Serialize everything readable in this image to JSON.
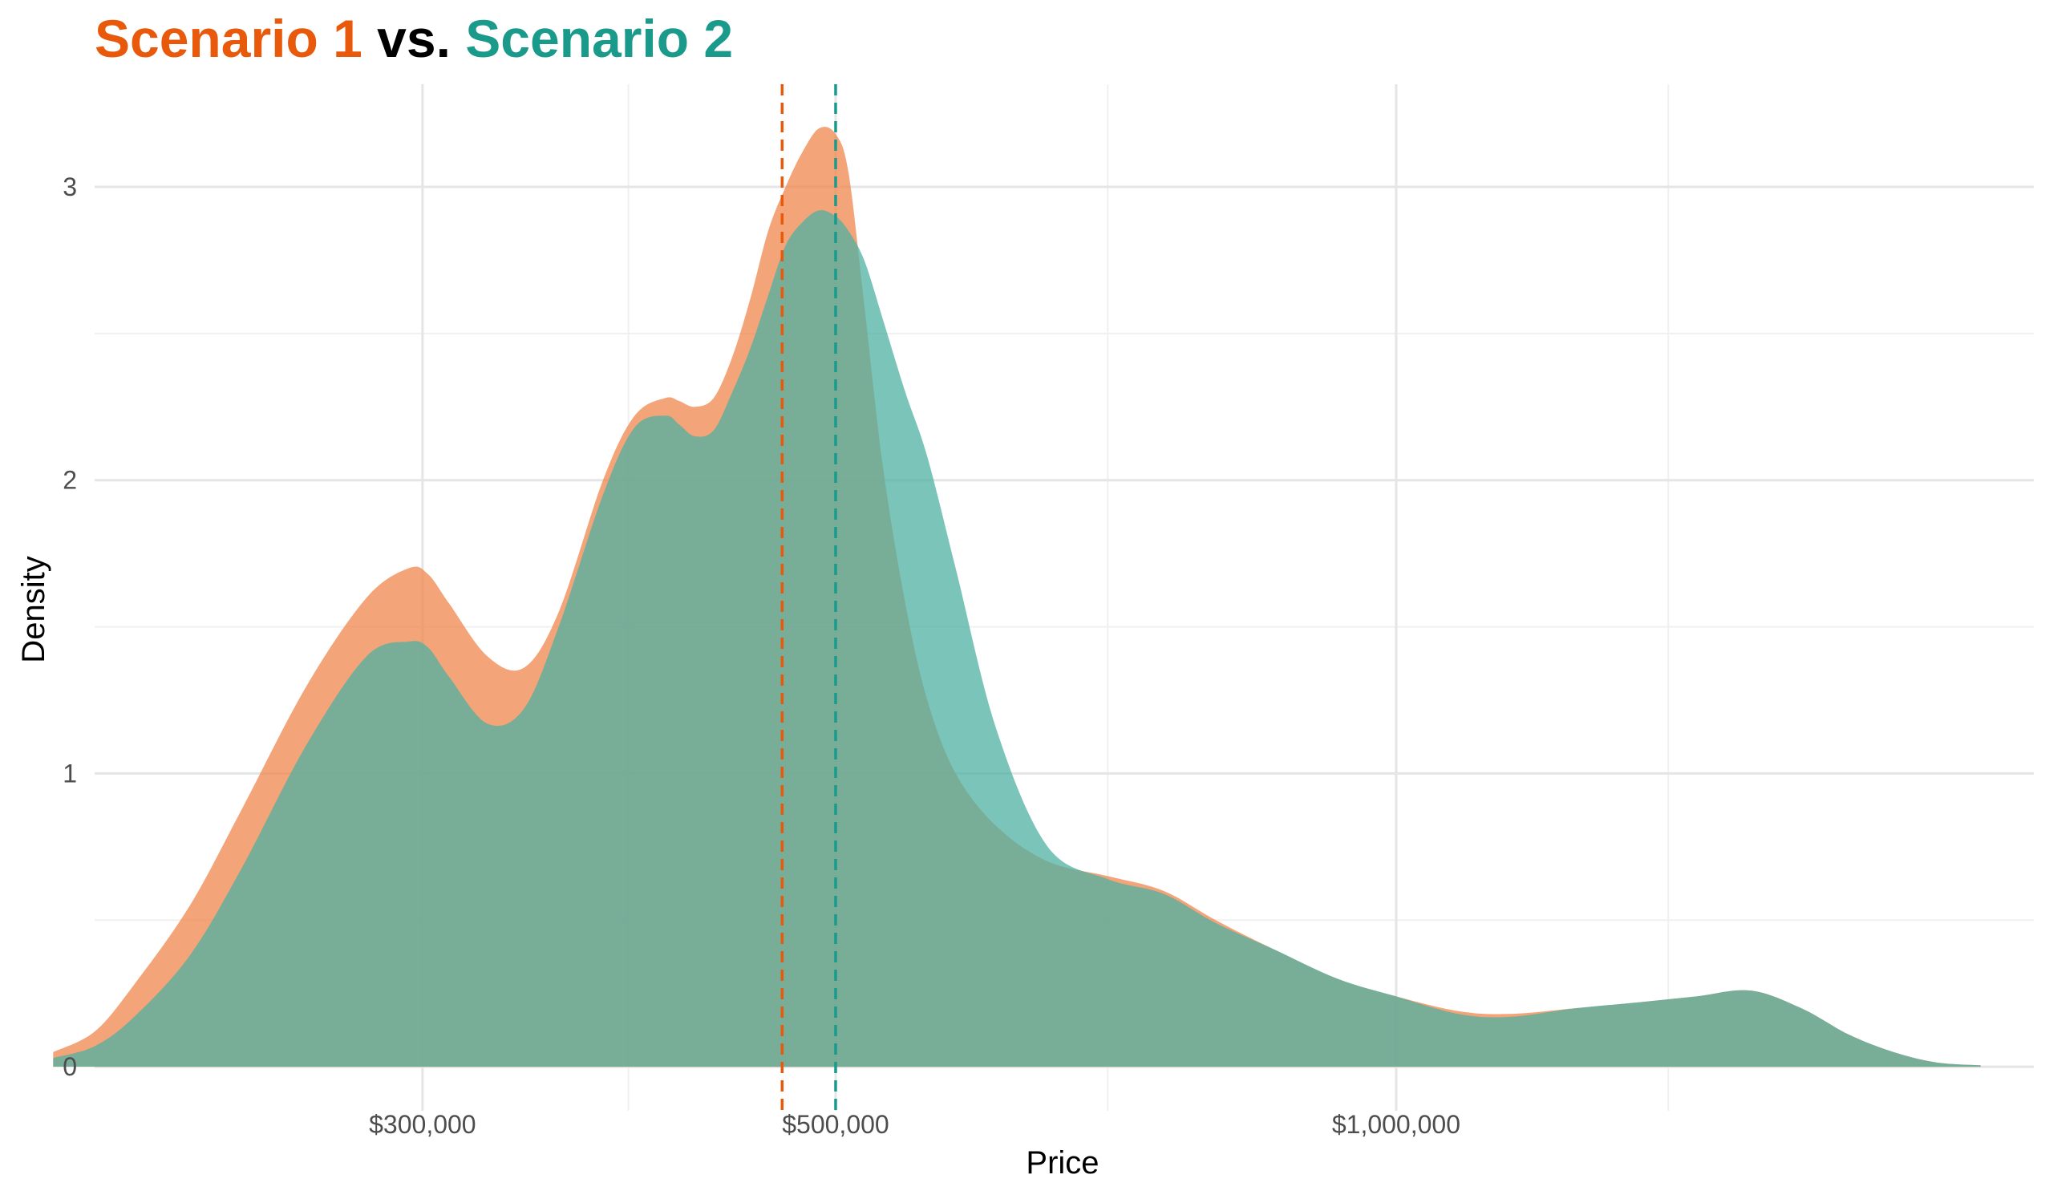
{
  "chart_data": {
    "type": "area",
    "title": {
      "part1": "Scenario 1",
      "part2": " vs. ",
      "part3": "Scenario 2"
    },
    "colors": {
      "scenario1": "#E8590C",
      "scenario2": "#1A9A8A",
      "fill1": "#F0864C",
      "fill2": "#4FB0A3",
      "grid_major": "#E5E5E5",
      "grid_minor": "#F0F0F0"
    },
    "xlabel": "Price",
    "ylabel": "Density",
    "x_scale": "log10",
    "xlim": [
      200000,
      2200000
    ],
    "ylim": [
      -0.15,
      3.35
    ],
    "x_ticks": [
      {
        "value": 300000,
        "label": "$300,000"
      },
      {
        "value": 500000,
        "label": "$500,000"
      },
      {
        "value": 1000000,
        "label": "$1,000,000"
      }
    ],
    "x_minor_ticks": [
      387000,
      700000,
      1400000
    ],
    "y_ticks": [
      {
        "value": 0,
        "label": "0"
      },
      {
        "value": 1,
        "label": "1"
      },
      {
        "value": 2,
        "label": "2"
      },
      {
        "value": 3,
        "label": "3"
      }
    ],
    "y_minor_ticks": [
      0.5,
      1.5,
      2.5
    ],
    "grid": true,
    "legend": "none",
    "vlines": [
      {
        "series": "Scenario 1",
        "x": 468000
      },
      {
        "series": "Scenario 2",
        "x": 500000
      }
    ],
    "series": [
      {
        "name": "Scenario 1",
        "x": [
          190000,
          200000,
          210000,
          225000,
          240000,
          260000,
          280000,
          295000,
          302000,
          310000,
          325000,
          340000,
          355000,
          375000,
          390000,
          405000,
          412000,
          420000,
          430000,
          440000,
          450000,
          460000,
          470000,
          480000,
          490000,
          500000,
          508000,
          518000,
          530000,
          545000,
          560000,
          580000,
          610000,
          650000,
          700000,
          750000,
          800000,
          860000,
          930000,
          1000000,
          1080000,
          1150000,
          1250000,
          1350000,
          1450000,
          1550000,
          1650000,
          1750000,
          1850000,
          1950000,
          2060000
        ],
        "values": [
          0.05,
          0.12,
          0.28,
          0.55,
          0.88,
          1.3,
          1.6,
          1.7,
          1.68,
          1.58,
          1.4,
          1.36,
          1.55,
          2.0,
          2.22,
          2.28,
          2.27,
          2.25,
          2.28,
          2.42,
          2.62,
          2.85,
          3.0,
          3.12,
          3.2,
          3.18,
          3.05,
          2.6,
          2.05,
          1.58,
          1.25,
          1.0,
          0.82,
          0.7,
          0.65,
          0.6,
          0.5,
          0.4,
          0.3,
          0.24,
          0.19,
          0.18,
          0.2,
          0.22,
          0.24,
          0.26,
          0.2,
          0.11,
          0.05,
          0.015,
          0.005
        ]
      },
      {
        "name": "Scenario 2",
        "x": [
          190000,
          200000,
          210000,
          225000,
          240000,
          260000,
          280000,
          295000,
          302000,
          310000,
          325000,
          340000,
          355000,
          375000,
          390000,
          405000,
          412000,
          420000,
          430000,
          440000,
          450000,
          460000,
          470000,
          480000,
          490000,
          500000,
          508000,
          518000,
          530000,
          545000,
          560000,
          580000,
          610000,
          650000,
          700000,
          750000,
          800000,
          860000,
          930000,
          1000000,
          1080000,
          1150000,
          1250000,
          1350000,
          1450000,
          1550000,
          1650000,
          1750000,
          1850000,
          1950000,
          2060000
        ],
        "values": [
          0.03,
          0.07,
          0.17,
          0.38,
          0.68,
          1.1,
          1.4,
          1.45,
          1.43,
          1.33,
          1.17,
          1.22,
          1.5,
          1.95,
          2.18,
          2.22,
          2.19,
          2.15,
          2.17,
          2.3,
          2.45,
          2.63,
          2.8,
          2.88,
          2.92,
          2.9,
          2.85,
          2.75,
          2.55,
          2.3,
          2.08,
          1.7,
          1.15,
          0.75,
          0.64,
          0.59,
          0.49,
          0.4,
          0.3,
          0.24,
          0.18,
          0.17,
          0.2,
          0.22,
          0.24,
          0.26,
          0.2,
          0.11,
          0.05,
          0.015,
          0.005
        ]
      }
    ]
  }
}
